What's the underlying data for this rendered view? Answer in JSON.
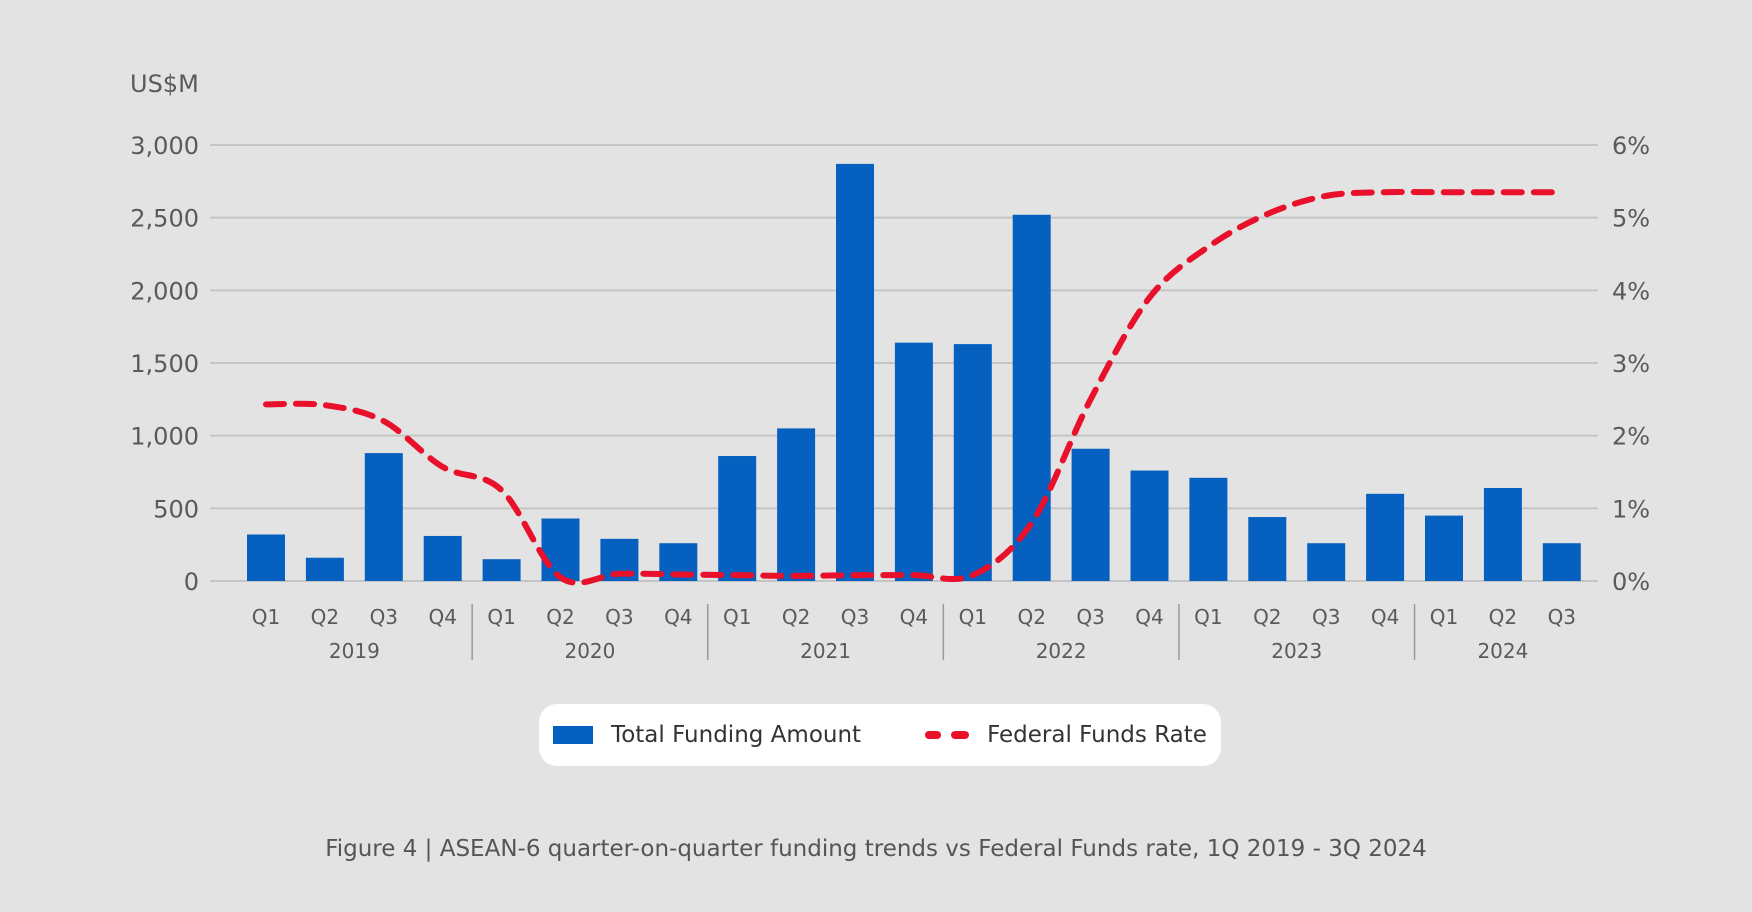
{
  "chart_data": {
    "type": "bar",
    "unit_label": "US$M",
    "years": [
      "2019",
      "2020",
      "2021",
      "2022",
      "2023",
      "2024"
    ],
    "categories": [
      "Q1",
      "Q2",
      "Q3",
      "Q4",
      "Q1",
      "Q2",
      "Q3",
      "Q4",
      "Q1",
      "Q2",
      "Q3",
      "Q4",
      "Q1",
      "Q2",
      "Q3",
      "Q4",
      "Q1",
      "Q2",
      "Q3",
      "Q4",
      "Q1",
      "Q2",
      "Q3"
    ],
    "category_years": [
      "2019",
      "2019",
      "2019",
      "2019",
      "2020",
      "2020",
      "2020",
      "2020",
      "2021",
      "2021",
      "2021",
      "2021",
      "2022",
      "2022",
      "2022",
      "2022",
      "2023",
      "2023",
      "2023",
      "2023",
      "2024",
      "2024",
      "2024"
    ],
    "series": [
      {
        "name": "Total Funding Amount",
        "axis": "left",
        "type": "bar",
        "color": "#0660c0",
        "values": [
          320,
          160,
          880,
          310,
          150,
          430,
          290,
          260,
          860,
          1050,
          2870,
          1640,
          1630,
          2520,
          910,
          760,
          710,
          440,
          260,
          600,
          450,
          640,
          260
        ]
      },
      {
        "name": "Federal Funds Rate",
        "axis": "right",
        "type": "line",
        "style": "dashed",
        "color": "#e8102a",
        "values": [
          2.43,
          2.42,
          2.2,
          1.57,
          1.25,
          0.05,
          0.1,
          0.09,
          0.08,
          0.07,
          0.08,
          0.08,
          0.08,
          0.8,
          2.5,
          3.9,
          4.6,
          5.05,
          5.3,
          5.35,
          5.35,
          5.35,
          5.35
        ]
      }
    ],
    "y_left": {
      "min": 0,
      "max": 3000,
      "ticks": [
        0,
        500,
        1000,
        1500,
        2000,
        2500,
        3000
      ],
      "tick_labels": [
        "0",
        "500",
        "1,000",
        "1,500",
        "2,000",
        "2,500",
        "3,000"
      ]
    },
    "y_right": {
      "min": 0,
      "max": 6,
      "ticks": [
        0,
        1,
        2,
        3,
        4,
        5,
        6
      ],
      "tick_labels": [
        "0%",
        "1%",
        "2%",
        "3%",
        "4%",
        "5%",
        "6%"
      ]
    },
    "grid": true,
    "legend_position": "bottom-center",
    "caption": "Figure 4 | ASEAN-6 quarter-on-quarter funding trends vs Federal Funds rate, 1Q 2019 - 3Q 2024"
  }
}
